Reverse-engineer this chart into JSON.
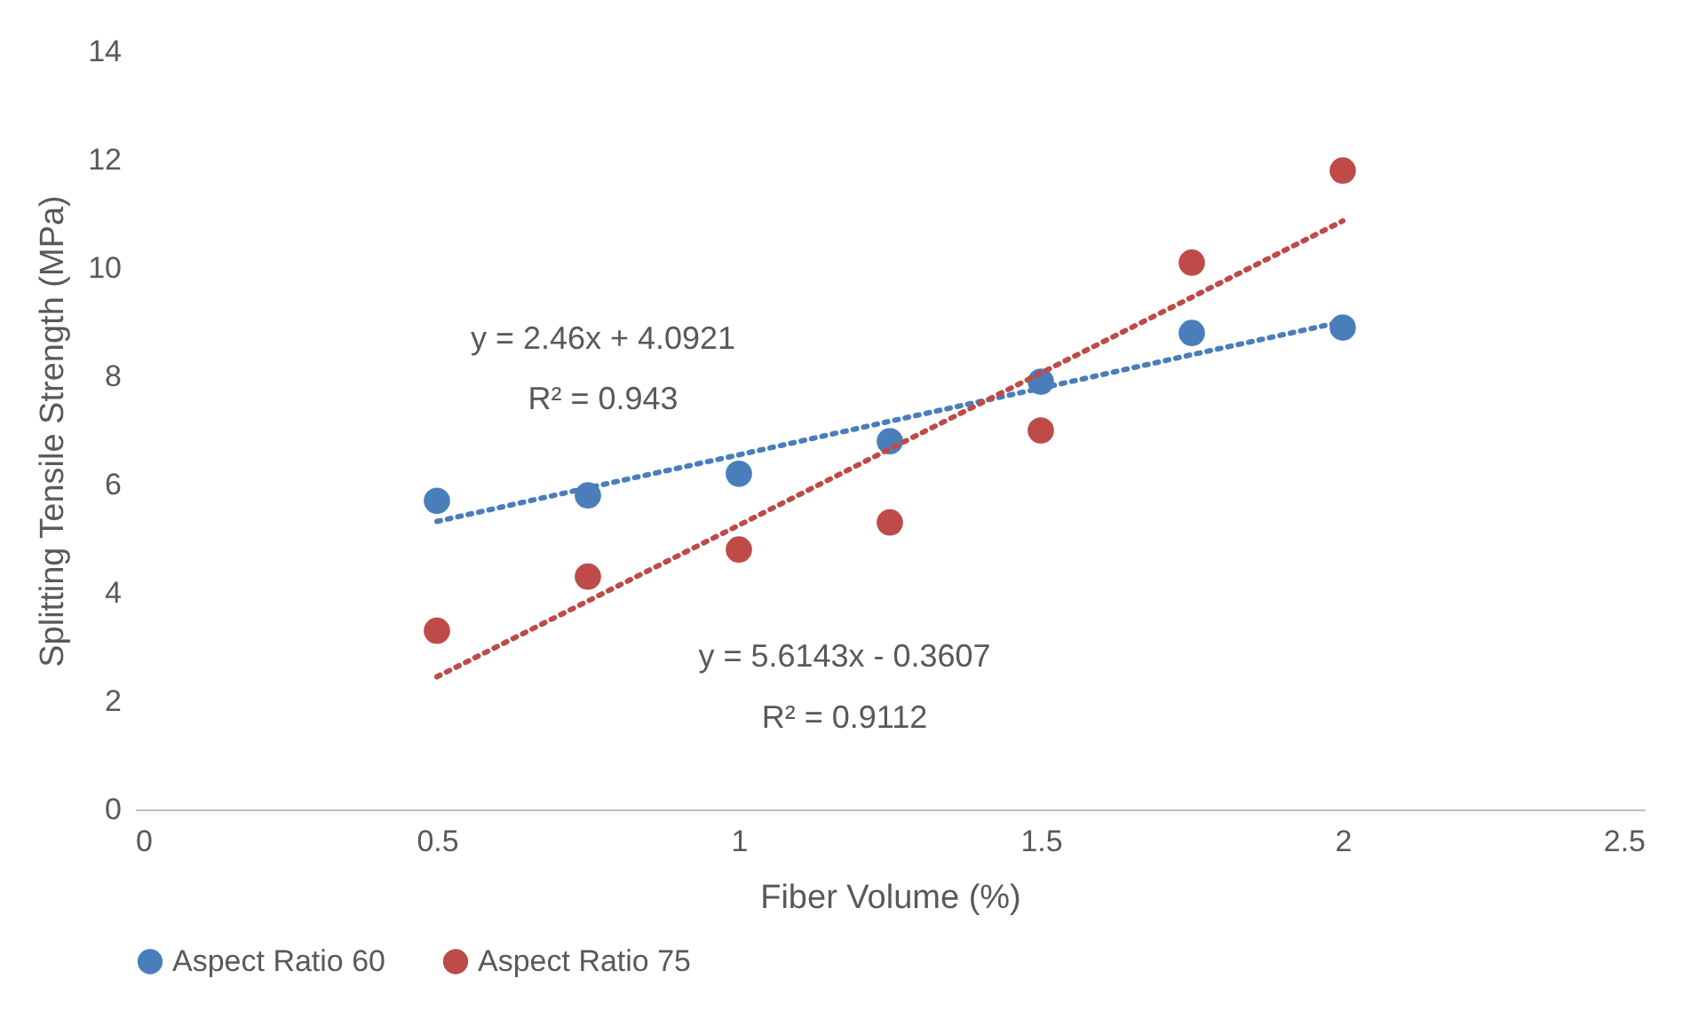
{
  "chart_data": {
    "type": "scatter",
    "xlabel": "Fiber Volume (%)",
    "ylabel": "Splitting Tensile Strength (MPa)",
    "x": [
      0.5,
      0.75,
      1.0,
      1.25,
      1.5,
      1.75,
      2.0
    ],
    "series": [
      {
        "name": "Aspect Ratio 60",
        "color": "#4a7ebb",
        "marker": "circle",
        "values": [
          5.7,
          5.8,
          6.2,
          6.8,
          7.9,
          8.8,
          8.9
        ]
      },
      {
        "name": "Aspect Ratio 75",
        "color": "#be4b48",
        "marker": "circle",
        "values": [
          3.3,
          4.3,
          4.8,
          5.3,
          7.0,
          10.1,
          11.8
        ]
      },
      {
        "type": "line",
        "color": "#4a7ebb",
        "marker": "none",
        "line_style": "dotted",
        "values": [
          5.32,
          5.94,
          6.55,
          7.17,
          7.78,
          8.4,
          9.01
        ]
      },
      {
        "type": "line",
        "color": "#be4b48",
        "marker": "none",
        "line_style": "dotted",
        "values": [
          2.45,
          3.85,
          5.25,
          6.66,
          8.06,
          9.46,
          10.87
        ]
      }
    ],
    "xlim": [
      0,
      2.5
    ],
    "xticks": [
      0,
      0.5,
      1,
      1.5,
      2,
      2.5
    ],
    "ylim": [
      0,
      14
    ],
    "yticks": [
      0,
      2,
      4,
      6,
      8,
      10,
      12,
      14
    ],
    "annotations": [
      "y = 2.46x + 4.0921",
      "R² = 0.943",
      "y = 5.6143x - 0.3607",
      "R² = 0.9112"
    ],
    "grid": false,
    "legend": "bottom"
  }
}
